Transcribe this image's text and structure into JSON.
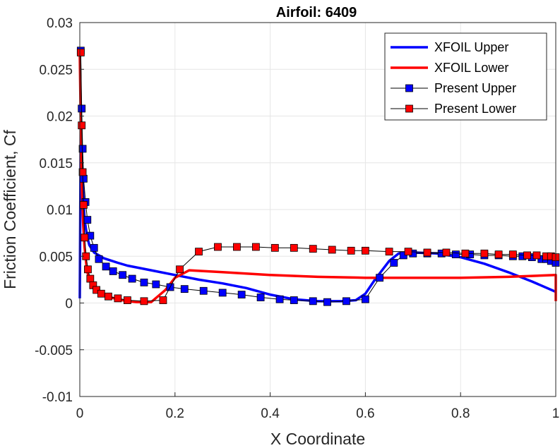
{
  "chart_data": {
    "type": "line",
    "title": "Airfoil: 6409",
    "xlabel": "X Coordinate",
    "ylabel": "Friction Coefficient, Cf",
    "xlim": [
      0,
      1
    ],
    "ylim": [
      -0.01,
      0.03
    ],
    "x_ticks": [
      "0",
      "0.2",
      "0.4",
      "0.6",
      "0.8",
      "1"
    ],
    "y_ticks": [
      "-0.01",
      "-0.005",
      "0",
      "0.005",
      "0.01",
      "0.015",
      "0.02",
      "0.025",
      "0.03"
    ],
    "x_tick_values": [
      0,
      0.2,
      0.4,
      0.6,
      0.8,
      1
    ],
    "y_tick_values": [
      -0.01,
      -0.005,
      0,
      0.005,
      0.01,
      0.015,
      0.02,
      0.025,
      0.03
    ],
    "grid": true,
    "legend_position": "top-right",
    "series": [
      {
        "name": "XFOIL Upper",
        "style": "line",
        "color": "#0000ff",
        "x": [
          0.0,
          0.002,
          0.004,
          0.006,
          0.01,
          0.015,
          0.02,
          0.03,
          0.05,
          0.08,
          0.1,
          0.15,
          0.2,
          0.25,
          0.3,
          0.35,
          0.4,
          0.45,
          0.5,
          0.55,
          0.58,
          0.6,
          0.62,
          0.65,
          0.67,
          0.7,
          0.75,
          0.8,
          0.85,
          0.9,
          0.95,
          1.0
        ],
        "y": [
          0.0005,
          0.019,
          0.016,
          0.013,
          0.009,
          0.0072,
          0.0062,
          0.0054,
          0.0048,
          0.0043,
          0.004,
          0.0035,
          0.003,
          0.0025,
          0.0021,
          0.0016,
          0.0009,
          0.0004,
          0.0002,
          0.0002,
          0.0003,
          0.001,
          0.0025,
          0.0045,
          0.0053,
          0.0054,
          0.0053,
          0.0049,
          0.0042,
          0.0033,
          0.0023,
          0.0012
        ]
      },
      {
        "name": "XFOIL Lower",
        "style": "line",
        "color": "#ff0000",
        "x": [
          0.0,
          0.002,
          0.004,
          0.007,
          0.01,
          0.015,
          0.02,
          0.03,
          0.05,
          0.08,
          0.1,
          0.12,
          0.15,
          0.18,
          0.2,
          0.23,
          0.3,
          0.4,
          0.5,
          0.6,
          0.7,
          0.8,
          0.9,
          0.95,
          1.0,
          1.0
        ],
        "y": [
          0.0265,
          0.0195,
          0.013,
          0.0085,
          0.006,
          0.0035,
          0.0025,
          0.0015,
          0.0008,
          0.0004,
          0.0002,
          0.0001,
          0.0001,
          0.0014,
          0.0027,
          0.0035,
          0.0033,
          0.003,
          0.0028,
          0.0027,
          0.0027,
          0.0027,
          0.0028,
          0.0029,
          0.003,
          0.0002
        ]
      },
      {
        "name": "Present Upper",
        "style": "line-marker",
        "color": "#0000ff",
        "x": [
          0.002,
          0.004,
          0.006,
          0.008,
          0.012,
          0.016,
          0.022,
          0.03,
          0.04,
          0.055,
          0.07,
          0.09,
          0.11,
          0.135,
          0.16,
          0.19,
          0.22,
          0.26,
          0.3,
          0.34,
          0.38,
          0.42,
          0.45,
          0.49,
          0.52,
          0.56,
          0.6,
          0.63,
          0.66,
          0.68,
          0.7,
          0.73,
          0.76,
          0.79,
          0.82,
          0.85,
          0.88,
          0.91,
          0.93,
          0.95,
          0.97,
          0.98,
          0.99,
          1.0
        ],
        "y": [
          0.027,
          0.0208,
          0.0165,
          0.0133,
          0.0108,
          0.0089,
          0.0072,
          0.0059,
          0.0047,
          0.0039,
          0.0034,
          0.003,
          0.0026,
          0.0022,
          0.002,
          0.0017,
          0.0015,
          0.0013,
          0.0011,
          0.0009,
          0.0006,
          0.0004,
          0.0003,
          0.0002,
          0.0001,
          0.0002,
          0.0004,
          0.0027,
          0.0043,
          0.0051,
          0.0053,
          0.0053,
          0.0053,
          0.0052,
          0.0052,
          0.0051,
          0.0051,
          0.005,
          0.005,
          0.0049,
          0.0047,
          0.0047,
          0.0045,
          0.0043
        ]
      },
      {
        "name": "Present Lower",
        "style": "line-marker",
        "color": "#ff0000",
        "x": [
          0.002,
          0.004,
          0.006,
          0.008,
          0.01,
          0.013,
          0.017,
          0.022,
          0.028,
          0.035,
          0.045,
          0.06,
          0.08,
          0.1,
          0.135,
          0.175,
          0.21,
          0.25,
          0.29,
          0.33,
          0.37,
          0.41,
          0.45,
          0.49,
          0.53,
          0.57,
          0.6,
          0.65,
          0.69,
          0.73,
          0.77,
          0.81,
          0.85,
          0.88,
          0.91,
          0.94,
          0.96,
          0.98,
          0.99,
          1.0
        ],
        "y": [
          0.0268,
          0.019,
          0.014,
          0.0105,
          0.007,
          0.005,
          0.0036,
          0.0026,
          0.0019,
          0.0014,
          0.001,
          0.0007,
          0.0005,
          0.0003,
          0.0002,
          0.0003,
          0.0036,
          0.0055,
          0.006,
          0.006,
          0.006,
          0.0059,
          0.0059,
          0.0058,
          0.0057,
          0.0056,
          0.0056,
          0.0055,
          0.0055,
          0.0054,
          0.0054,
          0.0053,
          0.0053,
          0.0052,
          0.0052,
          0.0051,
          0.0051,
          0.005,
          0.005,
          0.0049
        ]
      }
    ]
  }
}
